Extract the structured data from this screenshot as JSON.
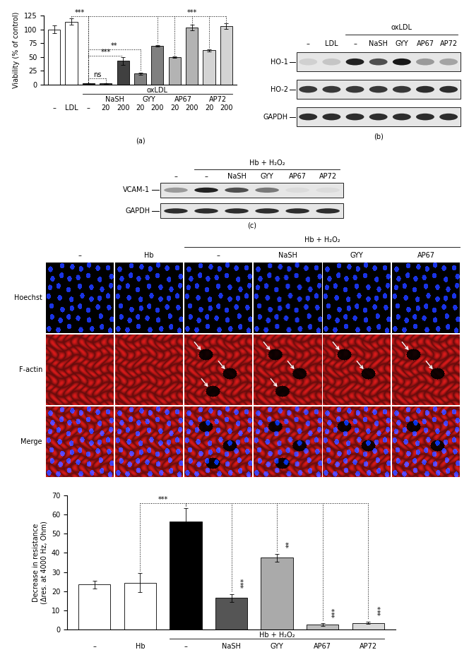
{
  "chart_data": [
    {
      "type": "bar",
      "label": "(a)",
      "y_label": "Viability (% of control)",
      "categories": [
        "–",
        "LDL",
        "–",
        "20",
        "200",
        "20",
        "200",
        "20",
        "200",
        "20",
        "200"
      ],
      "values": [
        100,
        114,
        2,
        2,
        43,
        20,
        70,
        50,
        103,
        62,
        106
      ],
      "errors": [
        7,
        6,
        0.5,
        0.5,
        7,
        2,
        1.5,
        1,
        5,
        1.5,
        5
      ],
      "colors": [
        "#ffffff",
        "#ffffff",
        "#000000",
        "#404040",
        "#404040",
        "#808080",
        "#808080",
        "#b3b3b3",
        "#b3b3b3",
        "#d4d4d4",
        "#d4d4d4"
      ],
      "ylim": [
        0,
        125
      ],
      "yticks": [
        0,
        25,
        50,
        75,
        100,
        125
      ],
      "group": {
        "label": "oxLDL",
        "from": 2,
        "to": 10
      },
      "subgroups": [
        {
          "label": "NaSH",
          "from": 3,
          "to": 4
        },
        {
          "label": "GYY",
          "from": 5,
          "to": 6
        },
        {
          "label": "AP67",
          "from": 7,
          "to": 8
        },
        {
          "label": "AP72",
          "from": 9,
          "to": 10
        }
      ],
      "brackets": [
        {
          "from": 1,
          "to": [
            2
          ],
          "y": 124,
          "text": "***"
        },
        {
          "from": 2,
          "to": [
            6,
            7,
            8,
            9,
            10
          ],
          "y": 124,
          "text": "***"
        },
        {
          "from": 2,
          "to": [
            3
          ],
          "y": 12,
          "text": "ns"
        },
        {
          "from": 2,
          "to": [
            4
          ],
          "y": 52,
          "text": "***"
        },
        {
          "from": 2,
          "to": [
            5
          ],
          "y": 64,
          "text": "**"
        }
      ]
    },
    {
      "type": "bar",
      "y_label": "Decrease in resistance\n(Δres. at 4000 Hz, Ohm)",
      "categories": [
        "–",
        "Hb",
        "–",
        "NaSH",
        "GYY",
        "AP67",
        "AP72"
      ],
      "values": [
        23.5,
        24.5,
        56.5,
        16.5,
        37.5,
        2.5,
        3.5
      ],
      "errors": [
        2,
        5,
        7,
        2,
        2,
        0.7,
        0.7
      ],
      "colors": [
        "#ffffff",
        "#ffffff",
        "#000000",
        "#555555",
        "#aaaaaa",
        "#bdbdbd",
        "#d9d9d9"
      ],
      "ylim": [
        0,
        70
      ],
      "yticks": [
        0,
        10,
        20,
        30,
        40,
        50,
        60,
        70
      ],
      "group": {
        "label": "Hb + H₂O₂",
        "from": 2,
        "to": 6
      },
      "brackets": [
        {
          "from": 1,
          "to": [
            2
          ],
          "y": 66,
          "text": "***"
        },
        {
          "from": 2,
          "to": [
            3,
            4,
            5,
            6
          ],
          "y": 66
        }
      ],
      "marks": [
        {
          "index": 3,
          "text": "***"
        },
        {
          "index": 4,
          "text": "**"
        },
        {
          "index": 5,
          "text": "***"
        },
        {
          "index": 6,
          "text": "***"
        }
      ]
    }
  ],
  "blots": [
    {
      "label": "(b)",
      "lanes": [
        "–",
        "LDL",
        "–",
        "NaSH",
        "GYY",
        "AP67",
        "AP72"
      ],
      "group": {
        "label": "oxLDL",
        "from": 2,
        "to": 6
      },
      "rows": [
        {
          "name": "HO-1",
          "intensity": [
            0.1,
            0.15,
            0.9,
            0.7,
            0.95,
            0.35,
            0.3
          ]
        },
        {
          "name": "HO-2",
          "intensity": [
            0.8,
            0.8,
            0.8,
            0.8,
            0.8,
            0.85,
            0.85
          ]
        },
        {
          "name": "GAPDH",
          "intensity": [
            0.85,
            0.85,
            0.85,
            0.85,
            0.85,
            0.85,
            0.85
          ]
        }
      ]
    },
    {
      "label": "(c)",
      "lanes": [
        "–",
        "–",
        "NaSH",
        "GYY",
        "AP67",
        "AP72"
      ],
      "group": {
        "label": "Hb + H₂O₂",
        "from": 1,
        "to": 5
      },
      "rows": [
        {
          "name": "VCAM-1",
          "intensity": [
            0.35,
            0.9,
            0.7,
            0.5,
            0.05,
            0.05
          ]
        },
        {
          "name": "GAPDH",
          "intensity": [
            0.85,
            0.85,
            0.85,
            0.85,
            0.85,
            0.85
          ]
        }
      ]
    }
  ],
  "images": {
    "columns": [
      "–",
      "Hb",
      "–",
      "NaSH",
      "GYY",
      "AP67"
    ],
    "group": {
      "label": "Hb + H₂O₂",
      "from": 2,
      "to": 5
    },
    "rows": [
      "Hoechst",
      "F-actin",
      "Merge"
    ],
    "arrows": [
      0,
      0,
      3,
      3,
      2,
      2
    ]
  }
}
